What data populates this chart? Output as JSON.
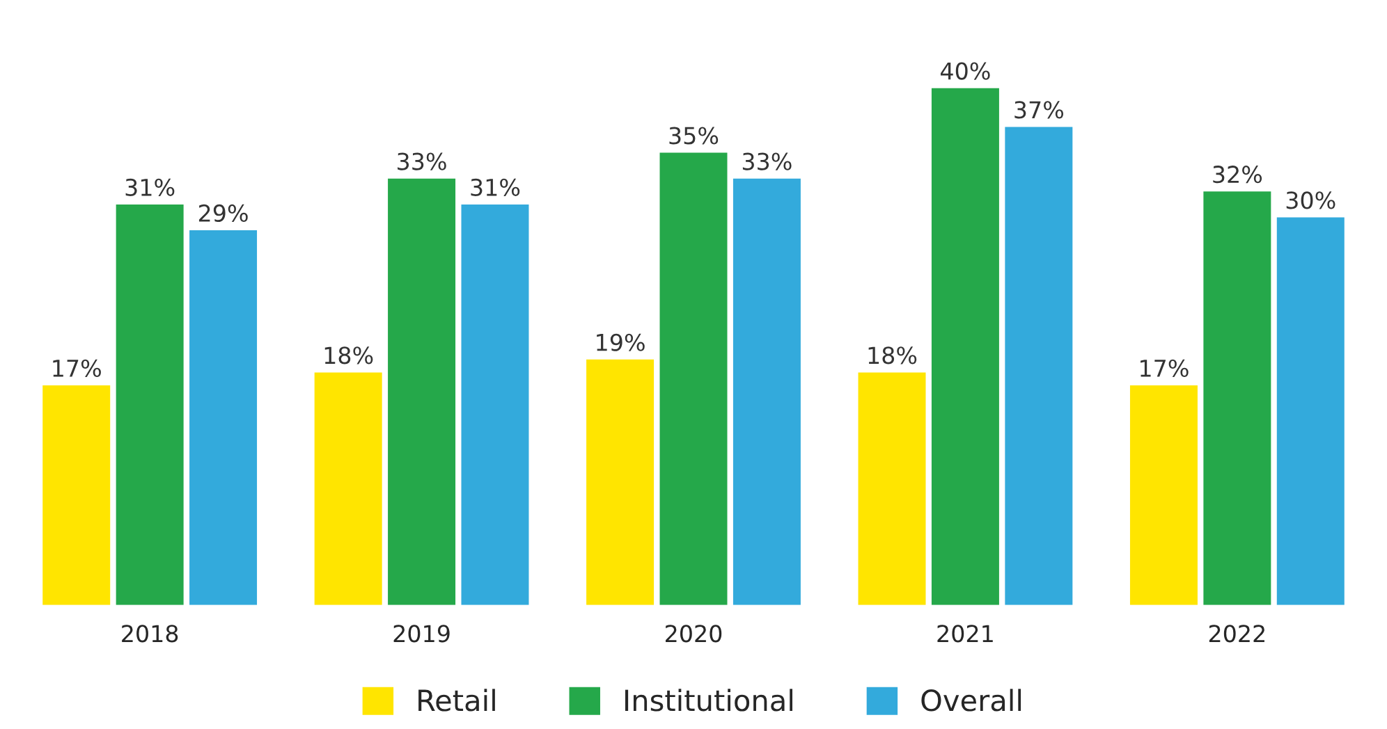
{
  "chart_data": {
    "type": "bar",
    "categories": [
      "2018",
      "2019",
      "2020",
      "2021",
      "2022"
    ],
    "series": [
      {
        "name": "Retail",
        "color": "#ffe500",
        "values": [
          17,
          18,
          19,
          18,
          17
        ],
        "value_labels": [
          "17%",
          "18%",
          "19%",
          "18%",
          "17%"
        ]
      },
      {
        "name": "Institutional",
        "color": "#25a84a",
        "values": [
          31,
          33,
          35,
          40,
          32
        ],
        "value_labels": [
          "31%",
          "33%",
          "35%",
          "40%",
          "32%"
        ]
      },
      {
        "name": "Overall",
        "color": "#33aadc",
        "values": [
          29,
          31,
          33,
          37,
          30
        ],
        "value_labels": [
          "29%",
          "31%",
          "33%",
          "37%",
          "30%"
        ]
      }
    ],
    "legend": "bottom",
    "grid": false
  }
}
